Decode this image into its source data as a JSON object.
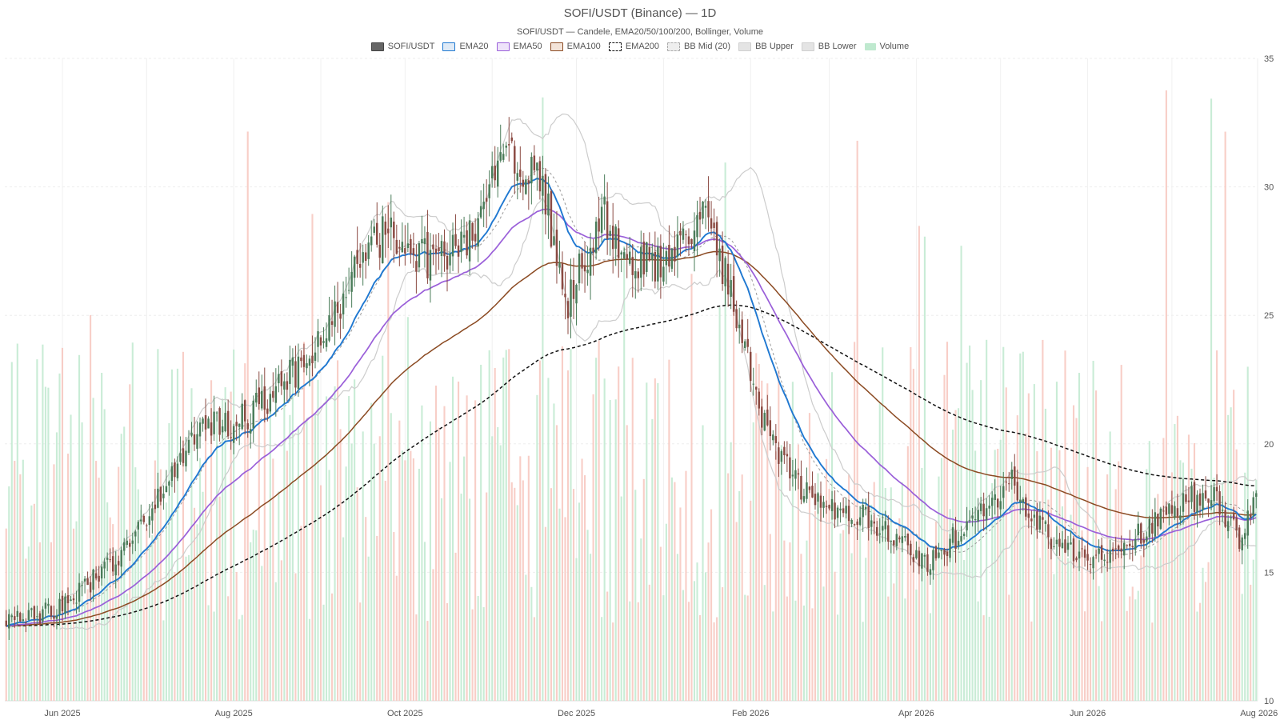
{
  "chart_data": {
    "type": "candlestick",
    "title": "SOFI/USDT (Binance) — 1D",
    "subtitle": "SOFI/USDT — Candele, EMA20/50/100/200, Bollinger, Volume",
    "x_tick_labels": [
      "Jun 2025",
      "Aug 2025",
      "Oct 2025",
      "Dec 2025",
      "Feb 2026",
      "Apr 2026",
      "Jun 2026",
      "Aug 2026"
    ],
    "y_axis": {
      "position": "right",
      "ylim": [
        10,
        35
      ],
      "ticks": [
        10,
        15,
        20,
        25,
        30,
        35
      ]
    },
    "date_range": [
      "2025-05-12",
      "2026-07-31"
    ],
    "legend": [
      {
        "name": "SOFI/USDT",
        "key": "candles"
      },
      {
        "name": "EMA20",
        "key": "ema20"
      },
      {
        "name": "EMA50",
        "key": "ema50"
      },
      {
        "name": "EMA100",
        "key": "ema100"
      },
      {
        "name": "EMA200",
        "key": "ema200"
      },
      {
        "name": "BB Mid (20)",
        "key": "bb_mid"
      },
      {
        "name": "BB Upper",
        "key": "bb_upper"
      },
      {
        "name": "BB Lower",
        "key": "bb_lower"
      },
      {
        "name": "Volume",
        "key": "volume"
      }
    ],
    "price_anchors": [
      [
        "2025-05-12",
        13.0
      ],
      [
        "2025-06-01",
        13.6
      ],
      [
        "2025-06-20",
        15.5
      ],
      [
        "2025-07-05",
        17.8
      ],
      [
        "2025-07-20",
        20.5
      ],
      [
        "2025-08-05",
        21.0
      ],
      [
        "2025-08-25",
        23.0
      ],
      [
        "2025-09-10",
        26.0
      ],
      [
        "2025-09-25",
        28.5
      ],
      [
        "2025-10-10",
        27.0
      ],
      [
        "2025-10-25",
        28.2
      ],
      [
        "2025-11-05",
        31.0
      ],
      [
        "2025-11-18",
        30.5
      ],
      [
        "2025-11-28",
        25.5
      ],
      [
        "2025-12-10",
        29.0
      ],
      [
        "2025-12-20",
        27.0
      ],
      [
        "2026-01-05",
        27.2
      ],
      [
        "2026-01-15",
        28.8
      ],
      [
        "2026-01-25",
        26.0
      ],
      [
        "2026-02-05",
        21.0
      ],
      [
        "2026-02-20",
        18.0
      ],
      [
        "2026-03-05",
        17.5
      ],
      [
        "2026-03-20",
        16.8
      ],
      [
        "2026-04-05",
        15.2
      ],
      [
        "2026-04-20",
        17.0
      ],
      [
        "2026-05-05",
        18.5
      ],
      [
        "2026-05-20",
        16.0
      ],
      [
        "2026-06-05",
        15.5
      ],
      [
        "2026-06-20",
        16.5
      ],
      [
        "2026-07-05",
        17.8
      ],
      [
        "2026-07-15",
        18.0
      ],
      [
        "2026-07-25",
        16.3
      ],
      [
        "2026-07-31",
        17.8
      ]
    ],
    "colors": {
      "up": "#4a7c59",
      "down": "#8b4a42",
      "ema20": "#1f78d1",
      "ema50": "#9a5fd9",
      "ema100": "#8b4a22",
      "ema200": "#111111",
      "bb_mid": "#999999",
      "bb_band": "#cccccc",
      "vol_up": "#bfe9cf",
      "vol_down": "#f7c6bd",
      "grid": "#eeeeee"
    }
  }
}
